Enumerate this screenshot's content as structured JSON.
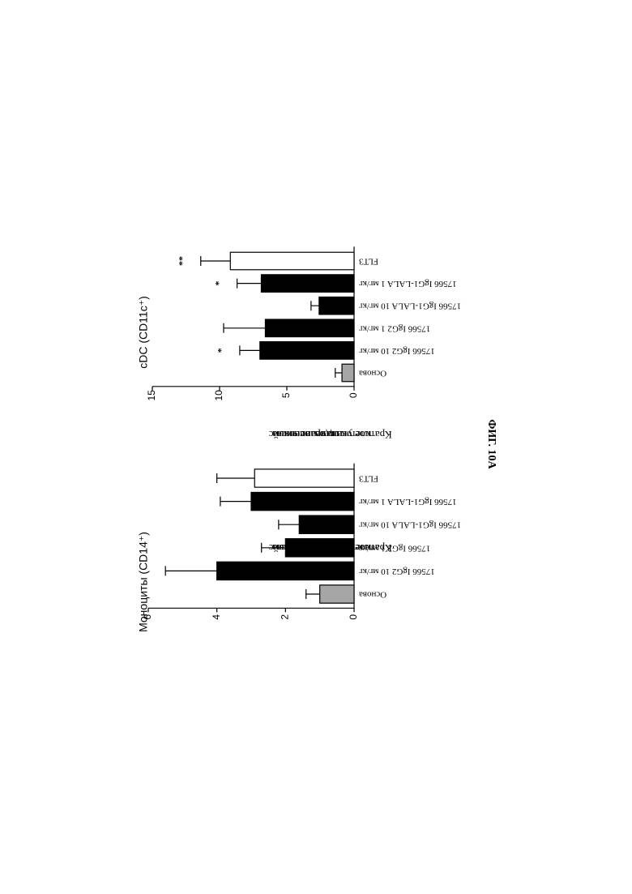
{
  "figure_label": "ФИГ. 10A",
  "chart_data": [
    {
      "type": "bar",
      "title": "Моноциты (CD14⁺)",
      "ylabel": [
        "Кратное увеличение числа",
        "клеток по сравнению с",
        "индив. основой"
      ],
      "categories": [
        "Основа",
        "17566 IgG2 10 мг/кг",
        "17566 IgG2 1 мг/кг",
        "17566 IgG1-LALA 10 мг/кг",
        "17566 IgG1-LALA 1 мг/кг",
        "FLT3"
      ],
      "values": [
        1.0,
        4.0,
        2.0,
        1.6,
        3.0,
        2.9
      ],
      "errors": [
        0.4,
        1.5,
        0.7,
        0.6,
        0.9,
        1.1
      ],
      "colors": [
        "#a6a6a6",
        "#000000",
        "#000000",
        "#000000",
        "#000000",
        "#ffffff"
      ],
      "ylim": [
        0,
        6
      ],
      "yticks": [
        0,
        2,
        4,
        6
      ],
      "annotations": []
    },
    {
      "type": "bar",
      "title": "cDC (CD11c⁺)",
      "ylabel": [
        "Кратное увеличение числа",
        "клеток по сравнению с",
        "индив. основой"
      ],
      "categories": [
        "Основа",
        "17566 IgG2 10 мг/кг",
        "17566 IgG2 1 мг/кг",
        "17566 IgG1-LALA 10 мг/кг",
        "17566 IgG1-LALA 1 мг/кг",
        "FLT3"
      ],
      "values": [
        0.9,
        7.0,
        6.6,
        2.6,
        6.9,
        9.2
      ],
      "errors": [
        0.5,
        1.5,
        3.1,
        0.6,
        1.8,
        2.2
      ],
      "colors": [
        "#a6a6a6",
        "#000000",
        "#000000",
        "#000000",
        "#000000",
        "#ffffff"
      ],
      "ylim": [
        0,
        15
      ],
      "yticks": [
        0,
        5,
        10,
        15
      ],
      "annotations": [
        {
          "index": 1,
          "text": "*"
        },
        {
          "index": 4,
          "text": "*"
        },
        {
          "index": 5,
          "text": "**"
        }
      ]
    }
  ]
}
